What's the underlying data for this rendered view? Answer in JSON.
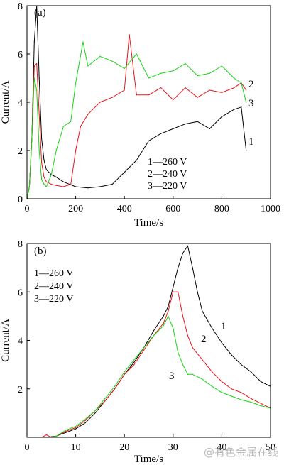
{
  "chart_data": [
    {
      "panel_label": "(a)",
      "type": "line",
      "xlabel": "Time/s",
      "ylabel": "Current/A",
      "xlim": [
        0,
        1000
      ],
      "ylim": [
        0,
        8
      ],
      "xticks": [
        0,
        200,
        400,
        600,
        800,
        1000
      ],
      "yticks": [
        0,
        2,
        4,
        6,
        8
      ],
      "grid": false,
      "legend": {
        "placement": "lower-right",
        "entries": [
          "1—260 V",
          "2—240 V",
          "3—220 V"
        ]
      },
      "series": [
        {
          "id": "1",
          "end_label": "1",
          "color": "#000000",
          "x": [
            0,
            10,
            20,
            30,
            40,
            50,
            60,
            70,
            80,
            100,
            120,
            150,
            200,
            250,
            300,
            350,
            400,
            450,
            500,
            550,
            600,
            650,
            700,
            750,
            800,
            850,
            880,
            900
          ],
          "y": [
            0,
            0.5,
            2.5,
            6.5,
            8.0,
            5.0,
            2.5,
            1.6,
            1.2,
            1.0,
            0.9,
            0.7,
            0.5,
            0.45,
            0.5,
            0.6,
            1.1,
            1.6,
            2.4,
            2.7,
            2.9,
            3.1,
            3.2,
            2.9,
            3.4,
            3.7,
            3.8,
            2.0
          ]
        },
        {
          "id": "2",
          "end_label": "2",
          "color": "#e8141c",
          "x": [
            0,
            10,
            20,
            30,
            40,
            50,
            60,
            70,
            80,
            100,
            120,
            150,
            180,
            200,
            220,
            250,
            300,
            350,
            400,
            420,
            450,
            500,
            550,
            600,
            650,
            700,
            750,
            800,
            850,
            880,
            900
          ],
          "y": [
            0,
            0.5,
            2.5,
            5.5,
            5.6,
            3.5,
            1.5,
            0.9,
            0.7,
            0.6,
            0.55,
            0.5,
            0.6,
            2.0,
            3.0,
            3.5,
            4.0,
            4.2,
            4.5,
            6.8,
            4.3,
            4.3,
            4.6,
            4.1,
            4.6,
            4.2,
            4.5,
            4.4,
            4.6,
            4.8,
            4.5
          ]
        },
        {
          "id": "3",
          "end_label": "3",
          "color": "#19d219",
          "x": [
            0,
            10,
            20,
            30,
            40,
            50,
            60,
            70,
            80,
            100,
            120,
            150,
            180,
            200,
            230,
            250,
            300,
            350,
            400,
            450,
            500,
            550,
            600,
            650,
            700,
            750,
            800,
            850,
            880,
            900
          ],
          "y": [
            0,
            0.5,
            2.5,
            5.0,
            4.5,
            2.0,
            0.8,
            0.6,
            0.5,
            1.0,
            2.0,
            3.0,
            3.2,
            4.8,
            6.5,
            5.5,
            5.9,
            5.7,
            5.4,
            6.0,
            5.0,
            5.2,
            5.3,
            5.6,
            5.1,
            5.2,
            5.5,
            5.0,
            4.8,
            4.0
          ]
        }
      ]
    },
    {
      "panel_label": "(b)",
      "type": "line",
      "xlabel": "Time/s",
      "ylabel": "Current/A",
      "xlim": [
        0,
        50
      ],
      "ylim": [
        0,
        8
      ],
      "xticks": [
        0,
        10,
        20,
        30,
        40,
        50
      ],
      "yticks": [
        2,
        4,
        6,
        8
      ],
      "grid": false,
      "legend": {
        "placement": "upper-left",
        "entries": [
          "1—260 V",
          "2—240 V",
          "3—220 V"
        ]
      },
      "series": [
        {
          "id": "1",
          "end_label": "1",
          "color": "#000000",
          "x": [
            4,
            6,
            8,
            10,
            12,
            14,
            16,
            18,
            20,
            22,
            24,
            26,
            28,
            29,
            30,
            31,
            32,
            33,
            34,
            35,
            36,
            38,
            40,
            42,
            44,
            46,
            48,
            50
          ],
          "y": [
            0,
            0.05,
            0.2,
            0.35,
            0.6,
            1.0,
            1.5,
            2.0,
            2.6,
            3.1,
            3.7,
            4.4,
            5.0,
            5.4,
            6.2,
            7.0,
            7.6,
            7.9,
            7.0,
            6.0,
            5.2,
            4.5,
            3.9,
            3.4,
            3.0,
            2.7,
            2.3,
            2.1
          ]
        },
        {
          "id": "2",
          "end_label": "2",
          "color": "#e8141c",
          "x": [
            3,
            4,
            5,
            6,
            8,
            10,
            12,
            14,
            16,
            18,
            20,
            22,
            24,
            26,
            28,
            29,
            30,
            31,
            32,
            33,
            34,
            36,
            38,
            40,
            42,
            44,
            46,
            48,
            50
          ],
          "y": [
            0,
            0.1,
            0,
            0.05,
            0.25,
            0.4,
            0.7,
            1.1,
            1.5,
            2.0,
            2.6,
            3.0,
            3.6,
            4.2,
            4.7,
            5.2,
            6.0,
            6.0,
            5.0,
            4.2,
            3.7,
            3.2,
            2.7,
            2.3,
            2.0,
            1.85,
            1.6,
            1.4,
            1.2
          ]
        },
        {
          "id": "3",
          "end_label": "3",
          "color": "#19d219",
          "x": [
            5,
            6,
            8,
            10,
            12,
            14,
            16,
            18,
            20,
            22,
            24,
            26,
            28,
            29,
            30,
            31,
            32,
            33,
            34,
            36,
            38,
            40,
            42,
            44,
            46,
            48,
            50
          ],
          "y": [
            0,
            0.05,
            0.3,
            0.45,
            0.75,
            1.1,
            1.6,
            2.1,
            2.7,
            3.2,
            3.7,
            4.2,
            4.6,
            5.0,
            4.5,
            3.5,
            3.0,
            2.6,
            2.6,
            2.4,
            2.1,
            1.85,
            1.7,
            1.55,
            1.45,
            1.3,
            1.2
          ]
        }
      ]
    }
  ],
  "watermark": "@有色金属在线"
}
